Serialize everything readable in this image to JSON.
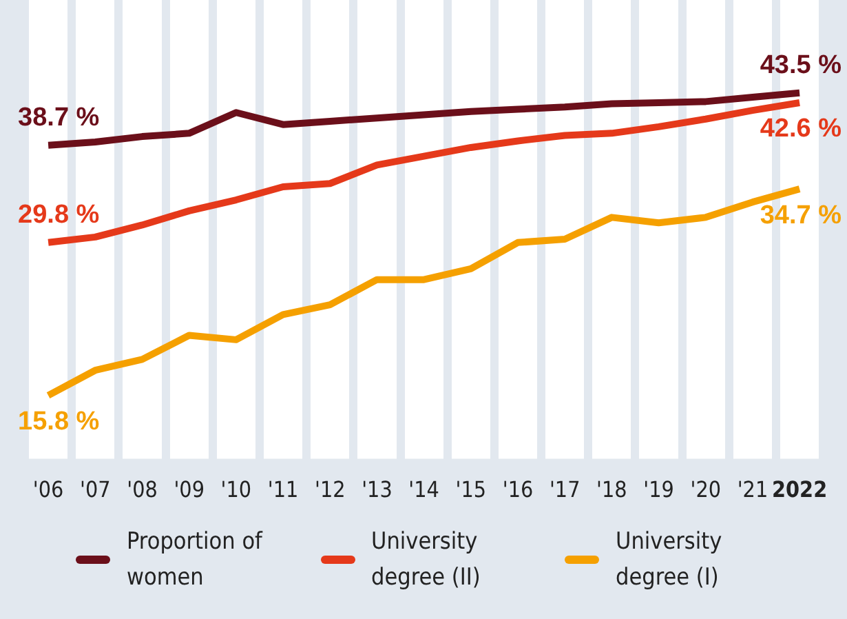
{
  "chart_data": {
    "type": "line",
    "categories": [
      "'06",
      "'07",
      "'08",
      "'09",
      "'10",
      "'11",
      "'12",
      "'13",
      "'14",
      "'15",
      "'16",
      "'17",
      "'18",
      "'19",
      "'20",
      "'21",
      "2022"
    ],
    "ylim": [
      10,
      52
    ],
    "grid": "x",
    "legend": "bottom",
    "marker": "none",
    "line_style": "solid",
    "tick_labels": "x",
    "series": [
      {
        "name": "Proportion of women",
        "color": "#6b0f1a",
        "values": [
          38.7,
          39.0,
          39.5,
          39.8,
          41.7,
          40.6,
          40.9,
          41.2,
          41.5,
          41.8,
          42.0,
          42.2,
          42.5,
          42.6,
          42.7,
          43.1,
          43.5
        ],
        "value_labels": [
          "38.7 %",
          null,
          null,
          null,
          null,
          null,
          null,
          null,
          null,
          null,
          null,
          null,
          null,
          null,
          null,
          null,
          "43.5 %"
        ]
      },
      {
        "name": "University degree (II)",
        "color": "#e5391a",
        "values": [
          29.8,
          30.3,
          31.4,
          32.7,
          33.7,
          34.9,
          35.2,
          36.9,
          37.7,
          38.5,
          39.1,
          39.6,
          39.8,
          40.4,
          41.1,
          41.9,
          42.6
        ],
        "value_labels": [
          "29.8 %",
          null,
          null,
          null,
          null,
          null,
          null,
          null,
          null,
          null,
          null,
          null,
          null,
          null,
          null,
          null,
          "42.6 %"
        ]
      },
      {
        "name": "University degree (I)",
        "color": "#f5a000",
        "values": [
          15.8,
          18.1,
          19.1,
          21.3,
          20.9,
          23.2,
          24.1,
          26.4,
          26.4,
          27.4,
          29.8,
          30.1,
          32.1,
          31.6,
          32.1,
          33.5,
          34.7
        ],
        "value_labels": [
          "15.8 %",
          null,
          null,
          null,
          null,
          null,
          null,
          null,
          null,
          null,
          null,
          null,
          null,
          null,
          null,
          null,
          "34.7 %"
        ]
      }
    ]
  }
}
